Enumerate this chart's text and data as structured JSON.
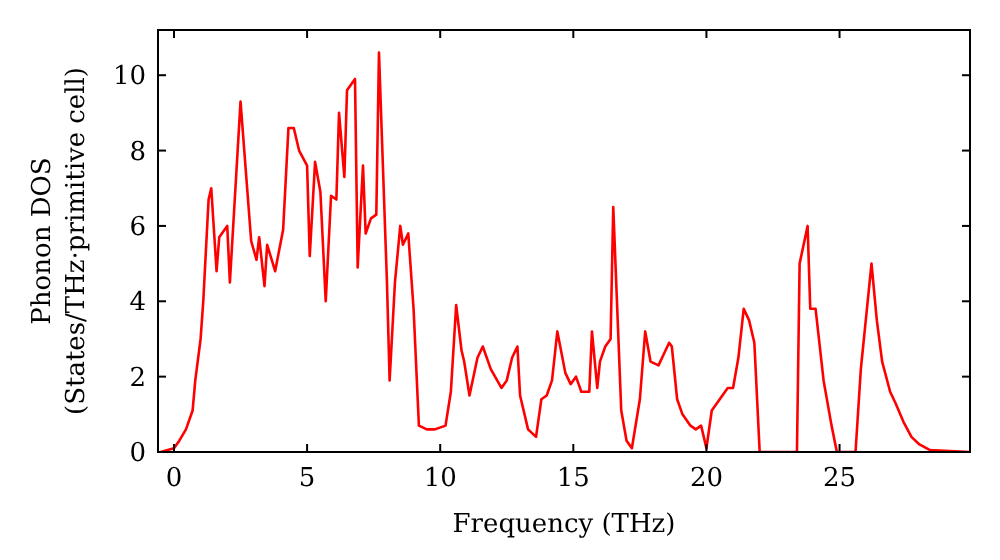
{
  "chart_data": {
    "type": "line",
    "xlabel": "Frequency (THz)",
    "ylabel": "Phonon DOS\n(States/THz·primitive cell)",
    "xlim": [
      -0.6,
      29.9
    ],
    "ylim": [
      0,
      11.2
    ],
    "xticks": [
      0,
      5,
      10,
      15,
      20,
      25
    ],
    "yticks": [
      0,
      2,
      4,
      6,
      8,
      10
    ],
    "grid": false,
    "marker": "none",
    "line_style": "solid",
    "series": [
      {
        "color": "#ff0000",
        "x": [
          -0.5,
          0,
          0.2,
          0.45,
          0.7,
          0.8,
          1.0,
          1.1,
          1.3,
          1.4,
          1.6,
          1.7,
          2.0,
          2.1,
          2.5,
          2.9,
          3.1,
          3.2,
          3.4,
          3.5,
          3.8,
          4.1,
          4.3,
          4.5,
          4.7,
          5.0,
          5.1,
          5.3,
          5.5,
          5.7,
          5.9,
          6.1,
          6.2,
          6.4,
          6.5,
          6.8,
          6.9,
          7.1,
          7.2,
          7.4,
          7.6,
          7.7,
          8.0,
          8.1,
          8.3,
          8.5,
          8.6,
          8.8,
          9.0,
          9.2,
          9.5,
          9.8,
          10.2,
          10.4,
          10.6,
          10.8,
          10.9,
          11.1,
          11.4,
          11.6,
          11.9,
          12.3,
          12.5,
          12.7,
          12.9,
          13.0,
          13.3,
          13.6,
          13.8,
          14.0,
          14.2,
          14.4,
          14.7,
          14.9,
          15.1,
          15.3,
          15.6,
          15.7,
          15.9,
          16.0,
          16.2,
          16.4,
          16.5,
          16.8,
          17.0,
          17.2,
          17.5,
          17.7,
          17.9,
          18.2,
          18.4,
          18.6,
          18.7,
          18.9,
          19.1,
          19.4,
          19.6,
          19.8,
          20.0,
          20.2,
          20.5,
          20.8,
          21.0,
          21.2,
          21.4,
          21.6,
          21.8,
          22.0,
          23.4,
          23.5,
          23.8,
          23.9,
          24.1,
          24.4,
          24.7,
          24.9,
          25.6,
          25.8,
          26.2,
          26.4,
          26.6,
          26.9,
          27.1,
          27.4,
          27.7,
          28.0,
          28.4,
          29.9
        ],
        "values": [
          0,
          0.1,
          0.3,
          0.6,
          1.1,
          1.9,
          3.0,
          4.0,
          6.7,
          7.0,
          4.8,
          5.7,
          6.0,
          4.5,
          9.3,
          5.6,
          5.1,
          5.7,
          4.4,
          5.5,
          4.8,
          5.9,
          8.6,
          8.6,
          8.0,
          7.6,
          5.2,
          7.7,
          6.9,
          4.0,
          6.8,
          6.7,
          9.0,
          7.3,
          9.6,
          9.9,
          4.9,
          7.6,
          5.8,
          6.2,
          6.3,
          10.6,
          4.5,
          1.9,
          4.5,
          6.0,
          5.5,
          5.8,
          3.8,
          0.7,
          0.6,
          0.6,
          0.7,
          1.6,
          3.9,
          2.7,
          2.4,
          1.5,
          2.5,
          2.8,
          2.2,
          1.7,
          1.9,
          2.5,
          2.8,
          1.5,
          0.6,
          0.4,
          1.4,
          1.5,
          1.9,
          3.2,
          2.1,
          1.8,
          2.0,
          1.6,
          1.6,
          3.2,
          1.7,
          2.4,
          2.8,
          3.0,
          6.5,
          1.1,
          0.3,
          0.1,
          1.4,
          3.2,
          2.4,
          2.3,
          2.6,
          2.9,
          2.8,
          1.4,
          1.0,
          0.7,
          0.6,
          0.7,
          0.1,
          1.1,
          1.4,
          1.7,
          1.7,
          2.5,
          3.8,
          3.5,
          2.9,
          0,
          0,
          5.0,
          6.0,
          3.8,
          3.8,
          1.9,
          0.7,
          0,
          0,
          2.2,
          5.0,
          3.5,
          2.4,
          1.6,
          1.3,
          0.8,
          0.4,
          0.2,
          0.05,
          0
        ]
      }
    ]
  }
}
